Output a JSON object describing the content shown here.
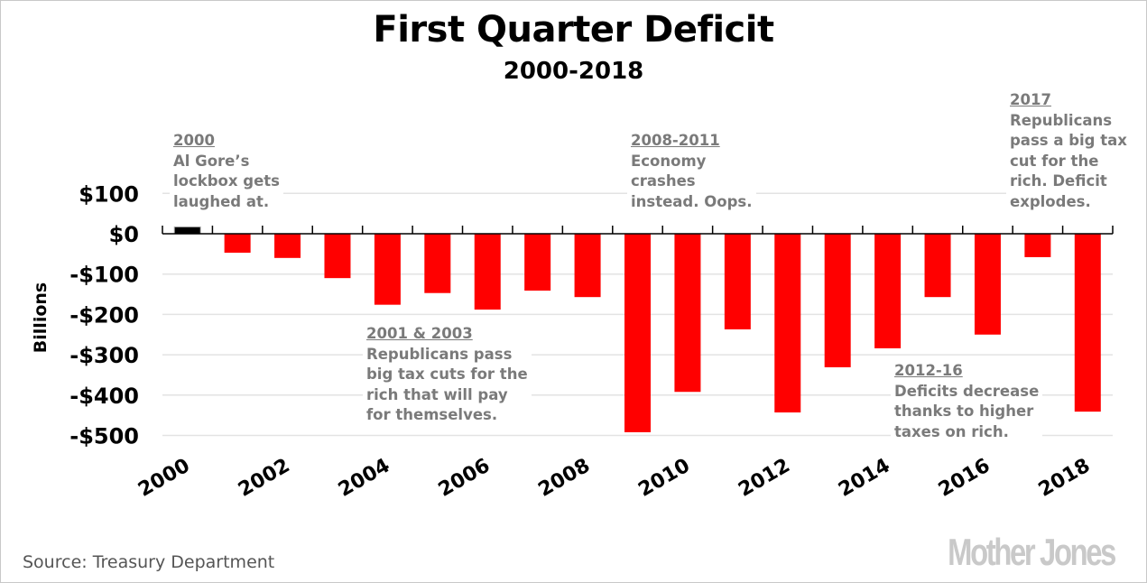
{
  "chart_data": {
    "type": "bar",
    "title": "First Quarter Deficit",
    "subtitle": "2000-2018",
    "ylabel": "Billions",
    "xlabel": "",
    "ylim": [
      -500,
      100
    ],
    "grid": true,
    "categories": [
      "2000",
      "2001",
      "2002",
      "2003",
      "2004",
      "2005",
      "2006",
      "2007",
      "2008",
      "2009",
      "2010",
      "2011",
      "2012",
      "2013",
      "2014",
      "2015",
      "2016",
      "2017",
      "2018"
    ],
    "values": [
      17,
      -47,
      -60,
      -110,
      -176,
      -147,
      -188,
      -141,
      -157,
      -492,
      -392,
      -237,
      -443,
      -331,
      -284,
      -157,
      -250,
      -58,
      -441
    ],
    "ytick_values": [
      100,
      0,
      -100,
      -200,
      -300,
      -400,
      -500
    ],
    "ytick_labels": [
      "$100",
      "$0",
      "-$100",
      "-$200",
      "-$300",
      "-$400",
      "-$500"
    ],
    "xtick_labels": [
      "2000",
      "2002",
      "2004",
      "2006",
      "2008",
      "2010",
      "2012",
      "2014",
      "2016",
      "2018"
    ],
    "colors": {
      "positive": "#000000",
      "negative": "#ff0000",
      "grid": "#e3e3e3",
      "annotation": "#7a7a7a"
    }
  },
  "annotations": [
    {
      "heading": "2000",
      "lines": [
        "Al Gore’s",
        "lockbox gets",
        "laughed at."
      ]
    },
    {
      "heading": "2001 & 2003",
      "lines": [
        "Republicans pass",
        "big tax cuts for the",
        "rich that will pay",
        "for themselves."
      ]
    },
    {
      "heading": "2008-2011",
      "lines": [
        "Economy",
        "crashes",
        "instead. Oops."
      ]
    },
    {
      "heading": "2012-16",
      "lines": [
        "Deficits decrease",
        "thanks to higher",
        "taxes on rich."
      ]
    },
    {
      "heading": "2017",
      "lines": [
        "Republicans",
        "pass a big tax",
        "cut for the",
        "rich. Deficit",
        "explodes."
      ]
    }
  ],
  "footer": {
    "source": "Source: Treasury Department",
    "logo": "Mother Jones"
  }
}
